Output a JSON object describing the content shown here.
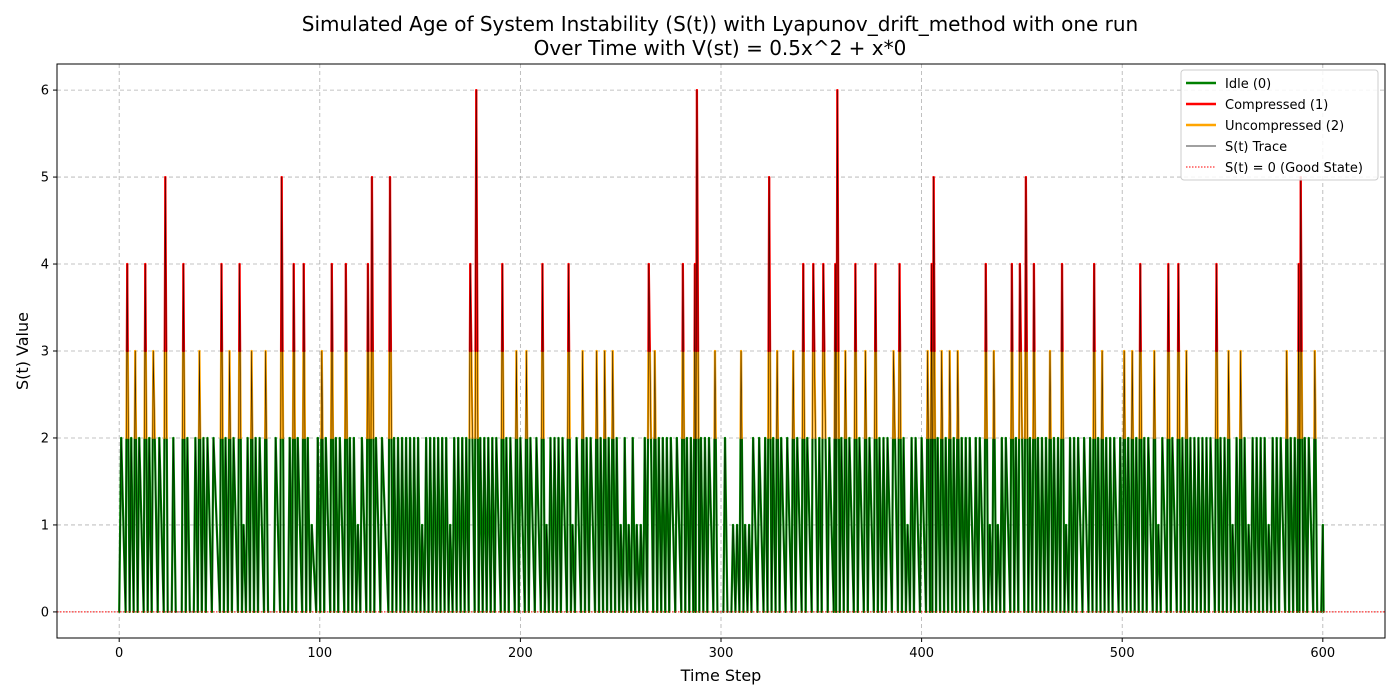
{
  "chart_data": {
    "type": "line",
    "title_lines": [
      "Simulated Age of System Instability (S(t)) with Lyapunov_drift_method with one run",
      "Over Time with V(st) = 0.5x^2 + x*0"
    ],
    "xlabel": "Time Step",
    "ylabel": "S(t) Value",
    "xlim": [
      -31,
      631
    ],
    "ylim": [
      -0.3,
      6.3
    ],
    "xticks": [
      0,
      100,
      200,
      300,
      400,
      500,
      600
    ],
    "yticks": [
      0,
      1,
      2,
      3,
      4,
      5,
      6
    ],
    "grid": true,
    "legend_position": "top-right",
    "legend": [
      {
        "label": "Idle (0)",
        "color": "#008000",
        "style": "solid"
      },
      {
        "label": "Compressed (1)",
        "color": "#ff0000",
        "style": "solid"
      },
      {
        "label": "Uncompressed (2)",
        "color": "#ffa500",
        "style": "solid"
      },
      {
        "label": "S(t) Trace",
        "color": "#000000",
        "style": "thin"
      },
      {
        "label": "S(t) = 0 (Good State)",
        "color": "#ff0000",
        "style": "dotted"
      }
    ],
    "reference_line": {
      "y": 0,
      "label": "S(t) = 0 (Good State)"
    },
    "peaks": [
      [
        1,
        2
      ],
      [
        4,
        4
      ],
      [
        6,
        2
      ],
      [
        8,
        3
      ],
      [
        10,
        2
      ],
      [
        13,
        4
      ],
      [
        15,
        2
      ],
      [
        17,
        3
      ],
      [
        20,
        2
      ],
      [
        23,
        5
      ],
      [
        25,
        0
      ],
      [
        27,
        2
      ],
      [
        29,
        0
      ],
      [
        32,
        4
      ],
      [
        34,
        2
      ],
      [
        36,
        0
      ],
      [
        38,
        2
      ],
      [
        40,
        3
      ],
      [
        42,
        2
      ],
      [
        44,
        2
      ],
      [
        47,
        2
      ],
      [
        51,
        4
      ],
      [
        53,
        2
      ],
      [
        55,
        3
      ],
      [
        57,
        2
      ],
      [
        60,
        4
      ],
      [
        62,
        1
      ],
      [
        64,
        2
      ],
      [
        66,
        3
      ],
      [
        68,
        2
      ],
      [
        70,
        2
      ],
      [
        73,
        3
      ],
      [
        75,
        0
      ],
      [
        78,
        2
      ],
      [
        81,
        5
      ],
      [
        83,
        0
      ],
      [
        85,
        2
      ],
      [
        87,
        4
      ],
      [
        89,
        2
      ],
      [
        92,
        4
      ],
      [
        94,
        2
      ],
      [
        96,
        1
      ],
      [
        99,
        2
      ],
      [
        101,
        3
      ],
      [
        103,
        2
      ],
      [
        106,
        4
      ],
      [
        108,
        2
      ],
      [
        110,
        2
      ],
      [
        113,
        4
      ],
      [
        115,
        2
      ],
      [
        117,
        2
      ],
      [
        119,
        1
      ],
      [
        121,
        2
      ],
      [
        124,
        4
      ],
      [
        126,
        5
      ],
      [
        128,
        2
      ],
      [
        131,
        2
      ],
      [
        135,
        5
      ],
      [
        137,
        2
      ],
      [
        139,
        2
      ],
      [
        141,
        2
      ],
      [
        143,
        2
      ],
      [
        145,
        2
      ],
      [
        147,
        2
      ],
      [
        149,
        2
      ],
      [
        151,
        1
      ],
      [
        153,
        2
      ],
      [
        155,
        2
      ],
      [
        157,
        2
      ],
      [
        159,
        2
      ],
      [
        161,
        2
      ],
      [
        163,
        2
      ],
      [
        165,
        1
      ],
      [
        167,
        2
      ],
      [
        169,
        2
      ],
      [
        171,
        2
      ],
      [
        173,
        2
      ],
      [
        175,
        4
      ],
      [
        178,
        6
      ],
      [
        180,
        2
      ],
      [
        182,
        2
      ],
      [
        184,
        2
      ],
      [
        186,
        2
      ],
      [
        188,
        2
      ],
      [
        191,
        4
      ],
      [
        193,
        2
      ],
      [
        195,
        2
      ],
      [
        198,
        3
      ],
      [
        200,
        2
      ],
      [
        203,
        3
      ],
      [
        205,
        2
      ],
      [
        208,
        2
      ],
      [
        211,
        4
      ],
      [
        213,
        1
      ],
      [
        215,
        2
      ],
      [
        217,
        2
      ],
      [
        219,
        2
      ],
      [
        221,
        2
      ],
      [
        224,
        4
      ],
      [
        226,
        1
      ],
      [
        228,
        2
      ],
      [
        231,
        3
      ],
      [
        233,
        2
      ],
      [
        235,
        2
      ],
      [
        238,
        3
      ],
      [
        240,
        2
      ],
      [
        242,
        3
      ],
      [
        244,
        2
      ],
      [
        246,
        3
      ],
      [
        248,
        2
      ],
      [
        250,
        1
      ],
      [
        252,
        2
      ],
      [
        254,
        1
      ],
      [
        256,
        2
      ],
      [
        258,
        1
      ],
      [
        260,
        1
      ],
      [
        262,
        2
      ],
      [
        264,
        4
      ],
      [
        267,
        3
      ],
      [
        269,
        2
      ],
      [
        271,
        2
      ],
      [
        273,
        2
      ],
      [
        275,
        2
      ],
      [
        278,
        2
      ],
      [
        281,
        4
      ],
      [
        283,
        2
      ],
      [
        285,
        2
      ],
      [
        287,
        4
      ],
      [
        288,
        6
      ],
      [
        290,
        2
      ],
      [
        292,
        2
      ],
      [
        294,
        2
      ],
      [
        297,
        3
      ],
      [
        299,
        0
      ],
      [
        302,
        2
      ],
      [
        304,
        0
      ],
      [
        306,
        1
      ],
      [
        308,
        1
      ],
      [
        310,
        3
      ],
      [
        312,
        1
      ],
      [
        314,
        1
      ],
      [
        316,
        2
      ],
      [
        319,
        2
      ],
      [
        322,
        2
      ],
      [
        324,
        5
      ],
      [
        326,
        2
      ],
      [
        328,
        3
      ],
      [
        330,
        2
      ],
      [
        333,
        2
      ],
      [
        336,
        3
      ],
      [
        338,
        2
      ],
      [
        341,
        4
      ],
      [
        343,
        2
      ],
      [
        346,
        4
      ],
      [
        349,
        2
      ],
      [
        351,
        4
      ],
      [
        354,
        2
      ],
      [
        357,
        4
      ],
      [
        358,
        6
      ],
      [
        360,
        2
      ],
      [
        362,
        3
      ],
      [
        364,
        2
      ],
      [
        367,
        4
      ],
      [
        369,
        2
      ],
      [
        372,
        3
      ],
      [
        374,
        2
      ],
      [
        377,
        4
      ],
      [
        379,
        2
      ],
      [
        381,
        2
      ],
      [
        383,
        2
      ],
      [
        386,
        3
      ],
      [
        389,
        4
      ],
      [
        391,
        2
      ],
      [
        393,
        1
      ],
      [
        395,
        2
      ],
      [
        397,
        2
      ],
      [
        400,
        2
      ],
      [
        403,
        3
      ],
      [
        405,
        4
      ],
      [
        406,
        5
      ],
      [
        408,
        2
      ],
      [
        410,
        3
      ],
      [
        412,
        2
      ],
      [
        414,
        3
      ],
      [
        416,
        2
      ],
      [
        418,
        3
      ],
      [
        420,
        2
      ],
      [
        422,
        2
      ],
      [
        424,
        2
      ],
      [
        427,
        2
      ],
      [
        429,
        2
      ],
      [
        432,
        4
      ],
      [
        434,
        1
      ],
      [
        436,
        3
      ],
      [
        438,
        1
      ],
      [
        440,
        2
      ],
      [
        442,
        2
      ],
      [
        445,
        4
      ],
      [
        447,
        2
      ],
      [
        449,
        4
      ],
      [
        452,
        5
      ],
      [
        454,
        2
      ],
      [
        456,
        4
      ],
      [
        458,
        2
      ],
      [
        460,
        2
      ],
      [
        462,
        2
      ],
      [
        464,
        3
      ],
      [
        466,
        2
      ],
      [
        468,
        2
      ],
      [
        470,
        4
      ],
      [
        472,
        1
      ],
      [
        474,
        2
      ],
      [
        476,
        2
      ],
      [
        478,
        2
      ],
      [
        481,
        2
      ],
      [
        484,
        2
      ],
      [
        486,
        4
      ],
      [
        488,
        2
      ],
      [
        490,
        3
      ],
      [
        492,
        2
      ],
      [
        494,
        2
      ],
      [
        496,
        2
      ],
      [
        499,
        2
      ],
      [
        501,
        3
      ],
      [
        503,
        2
      ],
      [
        505,
        3
      ],
      [
        507,
        2
      ],
      [
        509,
        4
      ],
      [
        511,
        2
      ],
      [
        513,
        2
      ],
      [
        516,
        3
      ],
      [
        518,
        1
      ],
      [
        520,
        2
      ],
      [
        523,
        4
      ],
      [
        525,
        2
      ],
      [
        528,
        4
      ],
      [
        530,
        2
      ],
      [
        532,
        3
      ],
      [
        534,
        2
      ],
      [
        536,
        2
      ],
      [
        538,
        2
      ],
      [
        540,
        2
      ],
      [
        542,
        2
      ],
      [
        544,
        2
      ],
      [
        547,
        4
      ],
      [
        549,
        2
      ],
      [
        551,
        2
      ],
      [
        553,
        3
      ],
      [
        555,
        1
      ],
      [
        557,
        2
      ],
      [
        559,
        3
      ],
      [
        561,
        2
      ],
      [
        563,
        1
      ],
      [
        565,
        2
      ],
      [
        567,
        2
      ],
      [
        569,
        2
      ],
      [
        571,
        2
      ],
      [
        573,
        1
      ],
      [
        575,
        2
      ],
      [
        577,
        2
      ],
      [
        579,
        2
      ],
      [
        582,
        3
      ],
      [
        584,
        2
      ],
      [
        586,
        2
      ],
      [
        588,
        4
      ],
      [
        589,
        5
      ],
      [
        591,
        2
      ],
      [
        593,
        2
      ],
      [
        596,
        3
      ],
      [
        598,
        0
      ],
      [
        600,
        1
      ]
    ]
  }
}
